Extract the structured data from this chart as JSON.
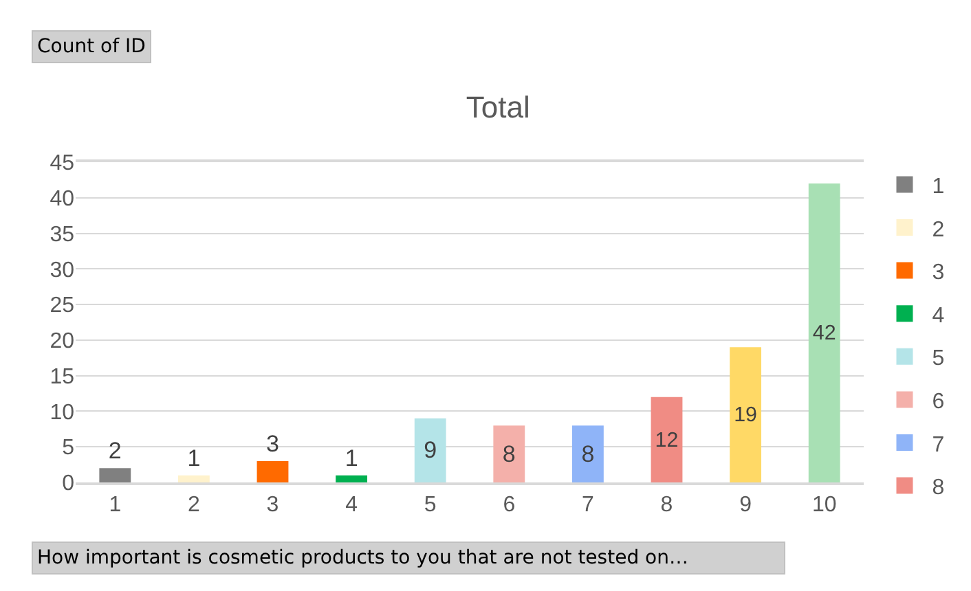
{
  "chart_data": {
    "type": "bar",
    "title": "Total",
    "categories": [
      "1",
      "2",
      "3",
      "4",
      "5",
      "6",
      "7",
      "8",
      "9",
      "10"
    ],
    "series": [
      {
        "name": "1",
        "color": "#808080",
        "values": [
          2,
          null,
          null,
          null,
          null,
          null,
          null,
          null,
          null,
          null
        ]
      },
      {
        "name": "2",
        "color": "#fff2cc",
        "values": [
          null,
          1,
          null,
          null,
          null,
          null,
          null,
          null,
          null,
          null
        ]
      },
      {
        "name": "3",
        "color": "#ff6a00",
        "values": [
          null,
          null,
          3,
          null,
          null,
          null,
          null,
          null,
          null,
          null
        ]
      },
      {
        "name": "4",
        "color": "#00b050",
        "values": [
          null,
          null,
          null,
          1,
          null,
          null,
          null,
          null,
          null,
          null
        ]
      },
      {
        "name": "5",
        "color": "#b4e4e8",
        "values": [
          null,
          null,
          null,
          null,
          9,
          null,
          null,
          null,
          null,
          null
        ]
      },
      {
        "name": "6",
        "color": "#f4b0aa",
        "values": [
          null,
          null,
          null,
          null,
          null,
          8,
          null,
          null,
          null,
          null
        ]
      },
      {
        "name": "7",
        "color": "#8fb4f8",
        "values": [
          null,
          null,
          null,
          null,
          null,
          null,
          8,
          null,
          null,
          null
        ]
      },
      {
        "name": "8",
        "color": "#f08c84",
        "values": [
          null,
          null,
          null,
          null,
          null,
          null,
          null,
          12,
          null,
          null
        ]
      },
      {
        "color": "#ffd966",
        "values": [
          null,
          null,
          null,
          null,
          null,
          null,
          null,
          null,
          19,
          null
        ]
      },
      {
        "color": "#a8e0b4",
        "values": [
          null,
          null,
          null,
          null,
          null,
          null,
          null,
          null,
          null,
          42
        ]
      }
    ],
    "ylim": [
      0,
      45
    ],
    "yticks": [
      0,
      5,
      10,
      15,
      20,
      25,
      30,
      35,
      40,
      45
    ],
    "grid": "y",
    "legend": "right",
    "data_labels": true,
    "annotations": [
      "Count of ID",
      "How important is cosmetic products to you that are not tested on…"
    ]
  }
}
